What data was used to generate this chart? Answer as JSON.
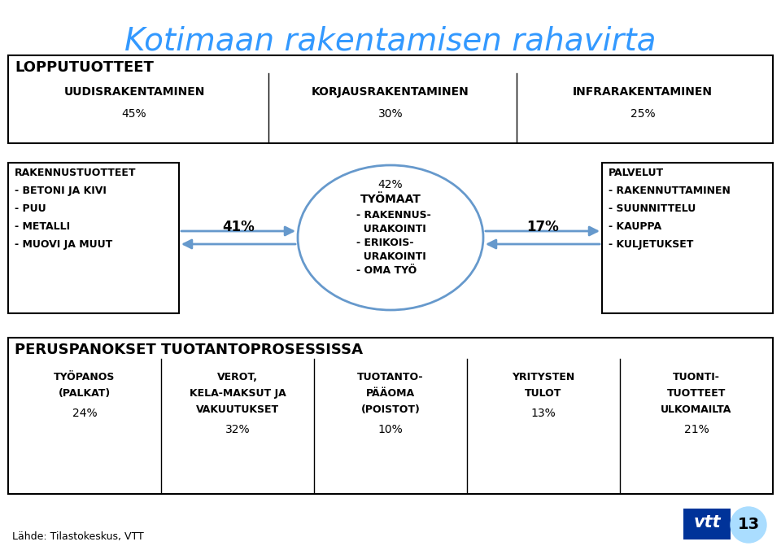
{
  "title": "Kotimaan rakentamisen rahavirta",
  "title_color": "#3399FF",
  "bg_color": "#FFFFFF",
  "top_box": {
    "label": "LOPPUTUOTTEET",
    "columns": [
      {
        "name": "UUDISRAKENTAMINEN",
        "pct": "45%"
      },
      {
        "name": "KORJAUSRAKENTAMINEN",
        "pct": "30%"
      },
      {
        "name": "INFRARAKENTAMINEN",
        "pct": "25%"
      }
    ]
  },
  "left_box": {
    "title": "RAKENNUSTUOTTEET",
    "lines": [
      "- BETONI JA KIVI",
      "- PUU",
      "- METALLI",
      "- MUOVI JA MUUT"
    ]
  },
  "left_arrow_pct": "41%",
  "center_ellipse": {
    "pct": "42%",
    "title": "TYÖMAAT",
    "lines": [
      "- RAKENNUS-",
      "  URAKOINTI",
      "- ERIKOIS-",
      "  URAKOINTI",
      "- OMA TYÖ"
    ]
  },
  "right_arrow_pct": "17%",
  "right_box": {
    "title": "PALVELUT",
    "lines": [
      "- RAKENNUTTAMINEN",
      "- SUUNNITTELU",
      "- KAUPPA",
      "- KULJETUKSET"
    ]
  },
  "bottom_box": {
    "label": "PERUSPANOKSET TUOTANTOPROSESSISSA",
    "columns": [
      {
        "name": "TYÖPANOS\n(PALKAT)",
        "pct": "24%"
      },
      {
        "name": "VEROT,\nKELA-MAKSUT JA\nVAKUUTUKSET",
        "pct": "32%"
      },
      {
        "name": "TUOTANTO-\nPÄÄOMA\n(POISTOT)",
        "pct": "10%"
      },
      {
        "name": "YRITYSTEN\nTULOT",
        "pct": "13%"
      },
      {
        "name": "TUONTI-\nTUOTTEET\nULKOMAILTA",
        "pct": "21%"
      }
    ]
  },
  "footer": "Lähde: Tilastokeskus, VTT",
  "page_num": "13",
  "box_border_color": "#000000",
  "ellipse_border_color": "#6699CC",
  "arrow_color": "#6699CC"
}
